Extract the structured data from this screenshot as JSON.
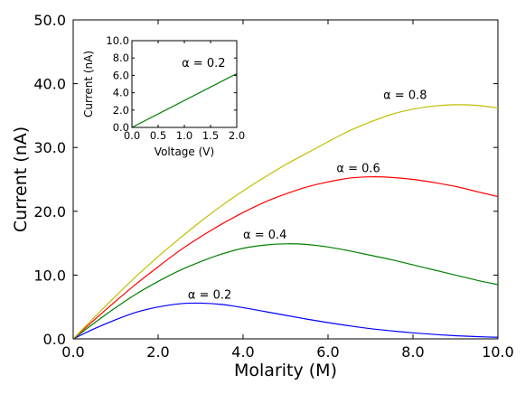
{
  "chart_data": [
    {
      "type": "line",
      "xlabel": "Molarity (M)",
      "ylabel": "Current (nA)",
      "xlim": [
        0,
        10
      ],
      "ylim": [
        0,
        50
      ],
      "xticks": [
        "0.0",
        "2.0",
        "4.0",
        "6.0",
        "8.0",
        "10.0"
      ],
      "yticks": [
        "0.0",
        "10.0",
        "20.0",
        "30.0",
        "40.0",
        "50.0"
      ],
      "grid": false,
      "legend": "none",
      "series": [
        {
          "color": "#0000ff",
          "x": [
            0,
            0.5,
            1.0,
            1.5,
            2.0,
            2.5,
            3.0,
            3.5,
            4.0,
            4.5,
            5.0,
            5.5,
            6.0,
            6.5,
            7.0,
            7.5,
            8.0,
            8.5,
            9.0,
            9.5,
            10.0
          ],
          "y": [
            0,
            1.6,
            3.0,
            4.2,
            5.0,
            5.5,
            5.6,
            5.4,
            4.9,
            4.3,
            3.7,
            3.1,
            2.55,
            2.05,
            1.6,
            1.25,
            0.95,
            0.7,
            0.5,
            0.35,
            0.25
          ]
        },
        {
          "color": "#008000",
          "x": [
            0,
            0.5,
            1.0,
            1.5,
            2.0,
            2.5,
            3.0,
            3.5,
            4.0,
            4.5,
            5.0,
            5.5,
            6.0,
            6.5,
            7.0,
            7.5,
            8.0,
            8.5,
            9.0,
            9.5,
            10.0
          ],
          "y": [
            0,
            2.5,
            4.9,
            7.1,
            9.0,
            10.7,
            12.1,
            13.3,
            14.2,
            14.7,
            14.9,
            14.8,
            14.4,
            13.8,
            13.1,
            12.4,
            11.6,
            10.8,
            10.0,
            9.2,
            8.5
          ]
        },
        {
          "color": "#ff0000",
          "x": [
            0,
            0.5,
            1.0,
            1.5,
            2.0,
            2.5,
            3.0,
            3.5,
            4.0,
            4.5,
            5.0,
            5.5,
            6.0,
            6.5,
            7.0,
            7.5,
            8.0,
            8.5,
            9.0,
            9.5,
            10.0
          ],
          "y": [
            0,
            3.0,
            5.9,
            8.7,
            11.3,
            13.8,
            16.0,
            18.0,
            19.8,
            21.4,
            22.7,
            23.8,
            24.6,
            25.2,
            25.4,
            25.3,
            25.0,
            24.5,
            23.9,
            23.1,
            22.3
          ]
        },
        {
          "color": "#bfbf00",
          "x": [
            0,
            0.5,
            1.0,
            1.5,
            2.0,
            2.5,
            3.0,
            3.5,
            4.0,
            4.5,
            5.0,
            5.5,
            6.0,
            6.5,
            7.0,
            7.5,
            8.0,
            8.5,
            9.0,
            9.5,
            10.0
          ],
          "y": [
            0,
            3.4,
            6.7,
            9.9,
            12.9,
            15.7,
            18.4,
            20.9,
            23.2,
            25.3,
            27.3,
            29.1,
            30.9,
            32.6,
            34.0,
            35.2,
            36.0,
            36.5,
            36.7,
            36.6,
            36.2
          ]
        }
      ],
      "annotations": [
        {
          "text": "α = 0.2",
          "x": 2.7,
          "y": 6.3
        },
        {
          "text": "α = 0.4",
          "x": 4.0,
          "y": 15.7
        },
        {
          "text": "α = 0.6",
          "x": 6.2,
          "y": 26.1
        },
        {
          "text": "α = 0.8",
          "x": 7.3,
          "y": 37.6
        }
      ]
    },
    {
      "type": "line",
      "xlabel": "Voltage (V)",
      "ylabel": "Current (nA)",
      "xlim": [
        0,
        2.0
      ],
      "ylim": [
        0,
        10.0
      ],
      "xticks": [
        "0.0",
        "0.5",
        "1.0",
        "1.5",
        "2.0"
      ],
      "yticks": [
        "0.0",
        "2.0",
        "4.0",
        "6.0",
        "8.0",
        "10.0"
      ],
      "grid": false,
      "legend": "none",
      "series": [
        {
          "color": "#008000",
          "x": [
            0,
            2.0
          ],
          "y": [
            0,
            6.2
          ]
        }
      ],
      "annotations": [
        {
          "text": "α = 0.2",
          "x": 0.95,
          "y": 7.0
        }
      ]
    }
  ]
}
